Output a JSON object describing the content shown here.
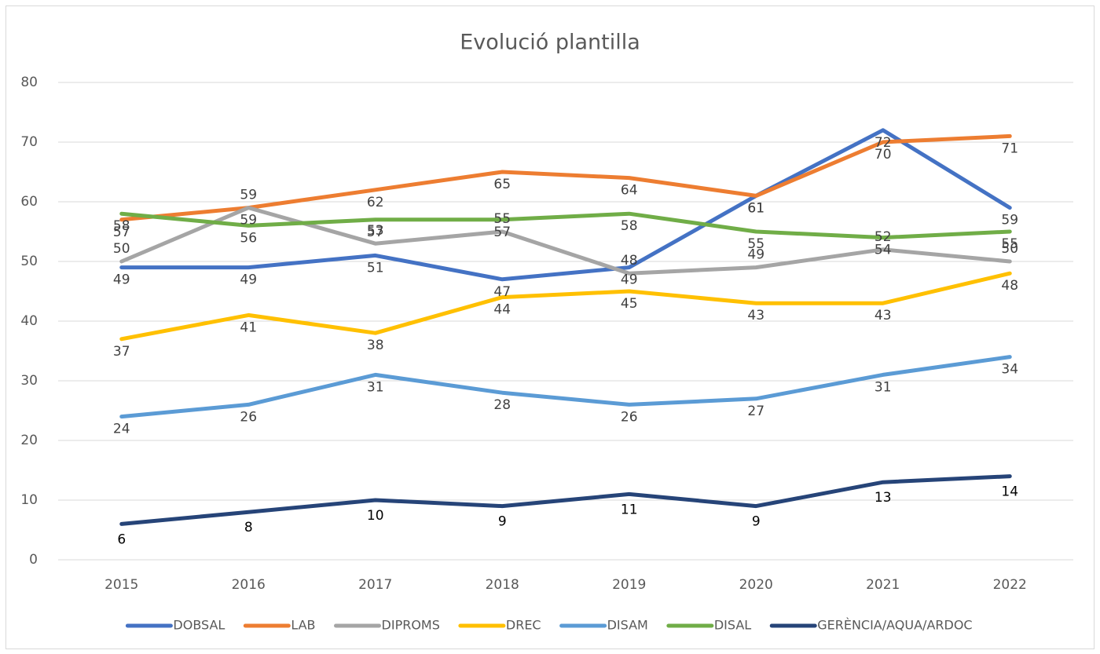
{
  "chart_data": {
    "type": "line",
    "title": "Evolució plantilla",
    "categories": [
      "2015",
      "2016",
      "2017",
      "2018",
      "2019",
      "2020",
      "2021",
      "2022"
    ],
    "ylim": [
      0,
      80
    ],
    "yticks": [
      0,
      10,
      20,
      30,
      40,
      50,
      60,
      70,
      80
    ],
    "grid": true,
    "legend": "bottom",
    "series": [
      {
        "name": "DOBSAL",
        "color": "#4472c4",
        "values": [
          49,
          49,
          51,
          47,
          49,
          61,
          72,
          59
        ]
      },
      {
        "name": "LAB",
        "color": "#ed7d31",
        "values": [
          57,
          59,
          62,
          65,
          64,
          61,
          70,
          71
        ]
      },
      {
        "name": "DIPROMS",
        "color": "#a5a5a5",
        "values": [
          50,
          59,
          53,
          55,
          48,
          49,
          52,
          50
        ]
      },
      {
        "name": "DREC",
        "color": "#ffc000",
        "values": [
          37,
          41,
          38,
          44,
          45,
          43,
          43,
          48
        ]
      },
      {
        "name": "DISAM",
        "color": "#5b9bd5",
        "values": [
          24,
          26,
          31,
          28,
          26,
          27,
          31,
          34
        ]
      },
      {
        "name": "DISAL",
        "color": "#70ad47",
        "values": [
          58,
          56,
          57,
          57,
          58,
          55,
          54,
          55
        ]
      },
      {
        "name": "GERÈNCIA/AQUA/ARDOC",
        "color": "#264478",
        "values": [
          6,
          8,
          10,
          9,
          11,
          9,
          13,
          14
        ]
      }
    ]
  }
}
